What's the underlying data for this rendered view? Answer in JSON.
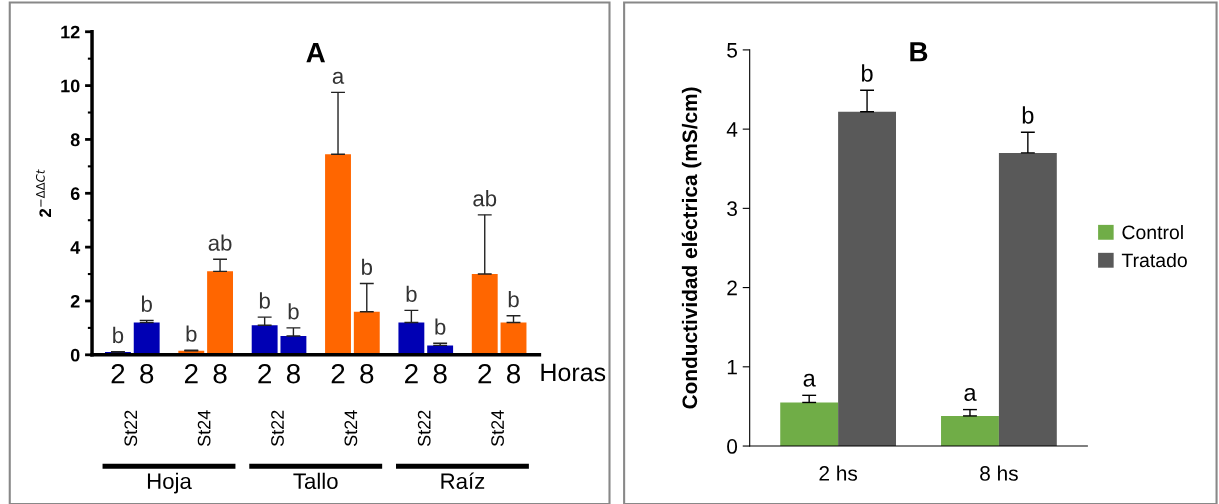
{
  "chart_data": [
    {
      "type": "bar",
      "title": "A",
      "ylabel": "2$^{−ΔΔCt}$",
      "xlabel": "Horas",
      "categories": [
        "2",
        "8",
        "2",
        "8",
        "2",
        "8",
        "2",
        "8",
        "2",
        "8",
        "2",
        "8"
      ],
      "values": [
        0.1,
        1.2,
        0.15,
        3.1,
        1.1,
        0.7,
        7.45,
        1.6,
        1.2,
        0.35,
        3.0,
        1.2
      ],
      "errors": [
        0.02,
        0.08,
        0.02,
        0.45,
        0.3,
        0.3,
        2.3,
        1.05,
        0.45,
        0.08,
        2.2,
        0.25
      ],
      "colors": [
        "#0000b4",
        "#0000b4",
        "#ff6600",
        "#ff6600",
        "#0000b4",
        "#0000b4",
        "#ff6600",
        "#ff6600",
        "#0000b4",
        "#0000b4",
        "#ff6600",
        "#ff6600"
      ],
      "value_labels": [
        "b",
        "b",
        "b",
        "ab",
        "b",
        "b",
        "a",
        "b",
        "b",
        "b",
        "ab",
        "b"
      ],
      "annotations": [
        "St22",
        "St24",
        "St22",
        "St24",
        "St22",
        "St24",
        "Hoja",
        "Tallo",
        "Raíz"
      ],
      "ylim": [
        0,
        12
      ],
      "yticks": [
        0,
        2,
        4,
        6,
        8,
        10,
        12
      ],
      "grid": false
    },
    {
      "type": "bar",
      "title": "B",
      "ylabel": "Conductividad eléctrica (mS/cm)",
      "categories": [
        "2 hs",
        "8 hs"
      ],
      "series": [
        {
          "name": "Control",
          "color": "#70ad47",
          "values": [
            0.55,
            0.38
          ],
          "errors": [
            0.09,
            0.08
          ],
          "value_labels": [
            "a",
            "a"
          ]
        },
        {
          "name": "Tratado",
          "color": "#595959",
          "values": [
            4.22,
            3.7
          ],
          "errors": [
            0.27,
            0.26
          ],
          "value_labels": [
            "b",
            "b"
          ]
        }
      ],
      "ylim": [
        0,
        5
      ],
      "yticks": [
        0,
        1,
        2,
        3,
        4,
        5
      ],
      "grid": false,
      "legend": "right"
    }
  ]
}
